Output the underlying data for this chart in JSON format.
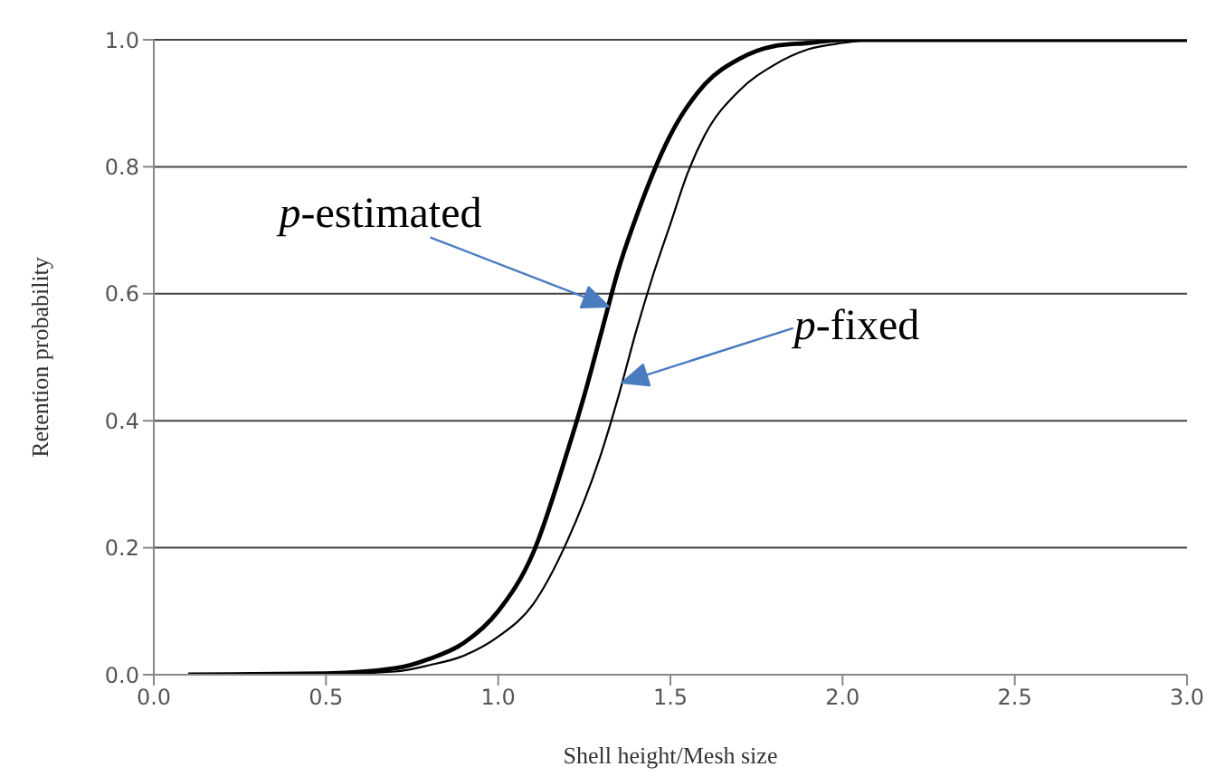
{
  "chart_data": {
    "type": "line",
    "xlabel": "Shell height/Mesh size",
    "ylabel": "Retention probability",
    "xlim": [
      0,
      3
    ],
    "xticks": [
      {
        "value": 0,
        "label": "0.0"
      },
      {
        "value": 0.5,
        "label": "0.5"
      },
      {
        "value": 1,
        "label": "1.0"
      },
      {
        "value": 1.5,
        "label": "1.5"
      },
      {
        "value": 2,
        "label": "2.0"
      },
      {
        "value": 2.5,
        "label": "2.5"
      },
      {
        "value": 3,
        "label": "3.0"
      }
    ],
    "ylim": [
      0,
      1
    ],
    "yticks": [
      {
        "value": 0,
        "label": "0.0"
      },
      {
        "value": 0.2,
        "label": "0.2"
      },
      {
        "value": 0.4,
        "label": "0.4"
      },
      {
        "value": 0.6,
        "label": "0.6"
      },
      {
        "value": 0.8,
        "label": "0.8"
      },
      {
        "value": 1,
        "label": "1.0"
      }
    ],
    "grid": "y",
    "legend": false,
    "marker": "none",
    "line_style": "solid",
    "series": [
      {
        "color": "#000000",
        "x": [
          0.1,
          0.5,
          0.7,
          0.8,
          0.9,
          1.0,
          1.1,
          1.2,
          1.25,
          1.3,
          1.35,
          1.4,
          1.5,
          1.6,
          1.7,
          1.8,
          1.9,
          2.0,
          3.0
        ],
        "values": [
          0,
          0.002,
          0.01,
          0.025,
          0.05,
          0.1,
          0.19,
          0.35,
          0.44,
          0.54,
          0.64,
          0.72,
          0.85,
          0.93,
          0.97,
          0.99,
          0.995,
          1.0,
          1.0
        ]
      },
      {
        "color": "#000000",
        "x": [
          0.1,
          0.5,
          0.7,
          0.8,
          0.9,
          1.0,
          1.1,
          1.2,
          1.3,
          1.35,
          1.4,
          1.45,
          1.5,
          1.55,
          1.6,
          1.7,
          1.8,
          1.9,
          2.0,
          2.1,
          3.0
        ],
        "values": [
          0,
          0.001,
          0.005,
          0.015,
          0.03,
          0.06,
          0.11,
          0.21,
          0.35,
          0.44,
          0.54,
          0.63,
          0.71,
          0.79,
          0.85,
          0.92,
          0.96,
          0.985,
          0.995,
          1.0,
          1.0
        ]
      }
    ],
    "annotations": [
      "p-estimated",
      "p-fixed"
    ]
  }
}
